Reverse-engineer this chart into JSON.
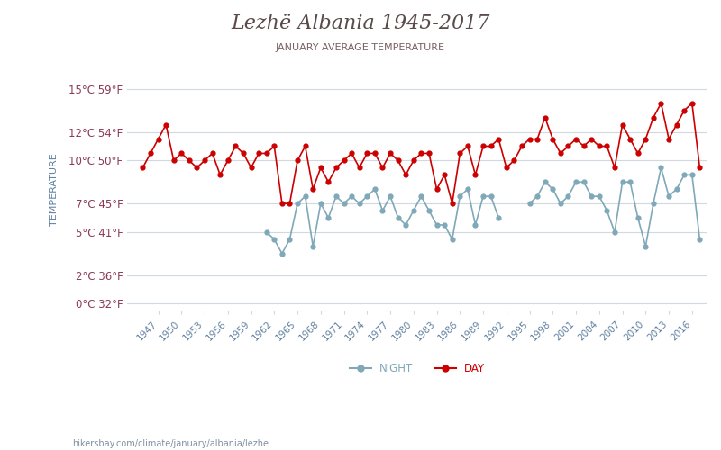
{
  "title": "Lezhë Albania 1945-2017",
  "subtitle": "JANUARY AVERAGE TEMPERATURE",
  "ylabel": "TEMPERATURE",
  "footer": "hikersbay.com/climate/january/albania/lezhe",
  "yticks_c": [
    0,
    2,
    5,
    7,
    10,
    12,
    15
  ],
  "yticks_f": [
    32,
    36,
    41,
    45,
    50,
    54,
    59
  ],
  "ylim": [
    -0.5,
    16.5
  ],
  "years": [
    1945,
    1946,
    1947,
    1948,
    1949,
    1950,
    1951,
    1952,
    1953,
    1954,
    1955,
    1956,
    1957,
    1958,
    1959,
    1960,
    1961,
    1962,
    1963,
    1964,
    1965,
    1966,
    1967,
    1968,
    1969,
    1970,
    1971,
    1972,
    1973,
    1974,
    1975,
    1976,
    1977,
    1978,
    1979,
    1980,
    1981,
    1982,
    1983,
    1984,
    1985,
    1986,
    1987,
    1988,
    1989,
    1990,
    1991,
    1992,
    1993,
    1994,
    1995,
    1996,
    1997,
    1998,
    1999,
    2000,
    2001,
    2002,
    2003,
    2004,
    2005,
    2006,
    2007,
    2008,
    2009,
    2010,
    2011,
    2012,
    2013,
    2014,
    2015,
    2016,
    2017
  ],
  "day": [
    9.5,
    10.5,
    11.5,
    12.5,
    10.0,
    10.5,
    10.0,
    9.5,
    10.0,
    10.5,
    9.0,
    10.0,
    11.0,
    10.5,
    9.5,
    10.5,
    10.5,
    11.0,
    7.0,
    7.0,
    10.0,
    11.0,
    8.0,
    9.5,
    8.5,
    9.5,
    10.0,
    10.5,
    9.5,
    10.5,
    10.5,
    9.5,
    10.5,
    10.0,
    9.0,
    10.0,
    10.5,
    10.5,
    8.0,
    9.0,
    7.0,
    10.5,
    11.0,
    9.0,
    11.0,
    11.0,
    11.5,
    9.5,
    10.0,
    11.0,
    11.5,
    11.5,
    13.0,
    11.5,
    10.5,
    11.0,
    11.5,
    11.0,
    11.5,
    11.0,
    11.0,
    9.5,
    12.5,
    11.5,
    10.5,
    11.5,
    13.0,
    14.0,
    11.5,
    12.5,
    13.5,
    14.0,
    9.5
  ],
  "night": [
    null,
    null,
    null,
    null,
    null,
    null,
    null,
    null,
    null,
    null,
    null,
    null,
    null,
    null,
    null,
    null,
    5.0,
    4.5,
    3.5,
    4.5,
    7.0,
    7.5,
    4.0,
    7.0,
    6.0,
    7.5,
    7.0,
    7.5,
    7.0,
    7.5,
    8.0,
    6.5,
    7.5,
    6.0,
    5.5,
    6.5,
    7.5,
    6.5,
    5.5,
    5.5,
    4.5,
    7.5,
    8.0,
    5.5,
    7.5,
    7.5,
    6.0,
    null,
    null,
    null,
    7.0,
    7.5,
    8.5,
    8.0,
    7.0,
    7.5,
    8.5,
    8.5,
    7.5,
    7.5,
    6.5,
    5.0,
    8.5,
    8.5,
    6.0,
    4.0,
    7.0,
    9.5,
    7.5,
    8.0,
    9.0,
    9.0,
    4.5
  ],
  "day_color": "#cc0000",
  "night_color": "#7fa8b8",
  "bg_color": "#ffffff",
  "grid_color": "#d0d8e0",
  "title_color": "#5a4a4a",
  "subtitle_color": "#7a6060",
  "axis_label_color": "#6080a0",
  "tick_color": "#8B3A52",
  "xtick_color": "#6080a0"
}
